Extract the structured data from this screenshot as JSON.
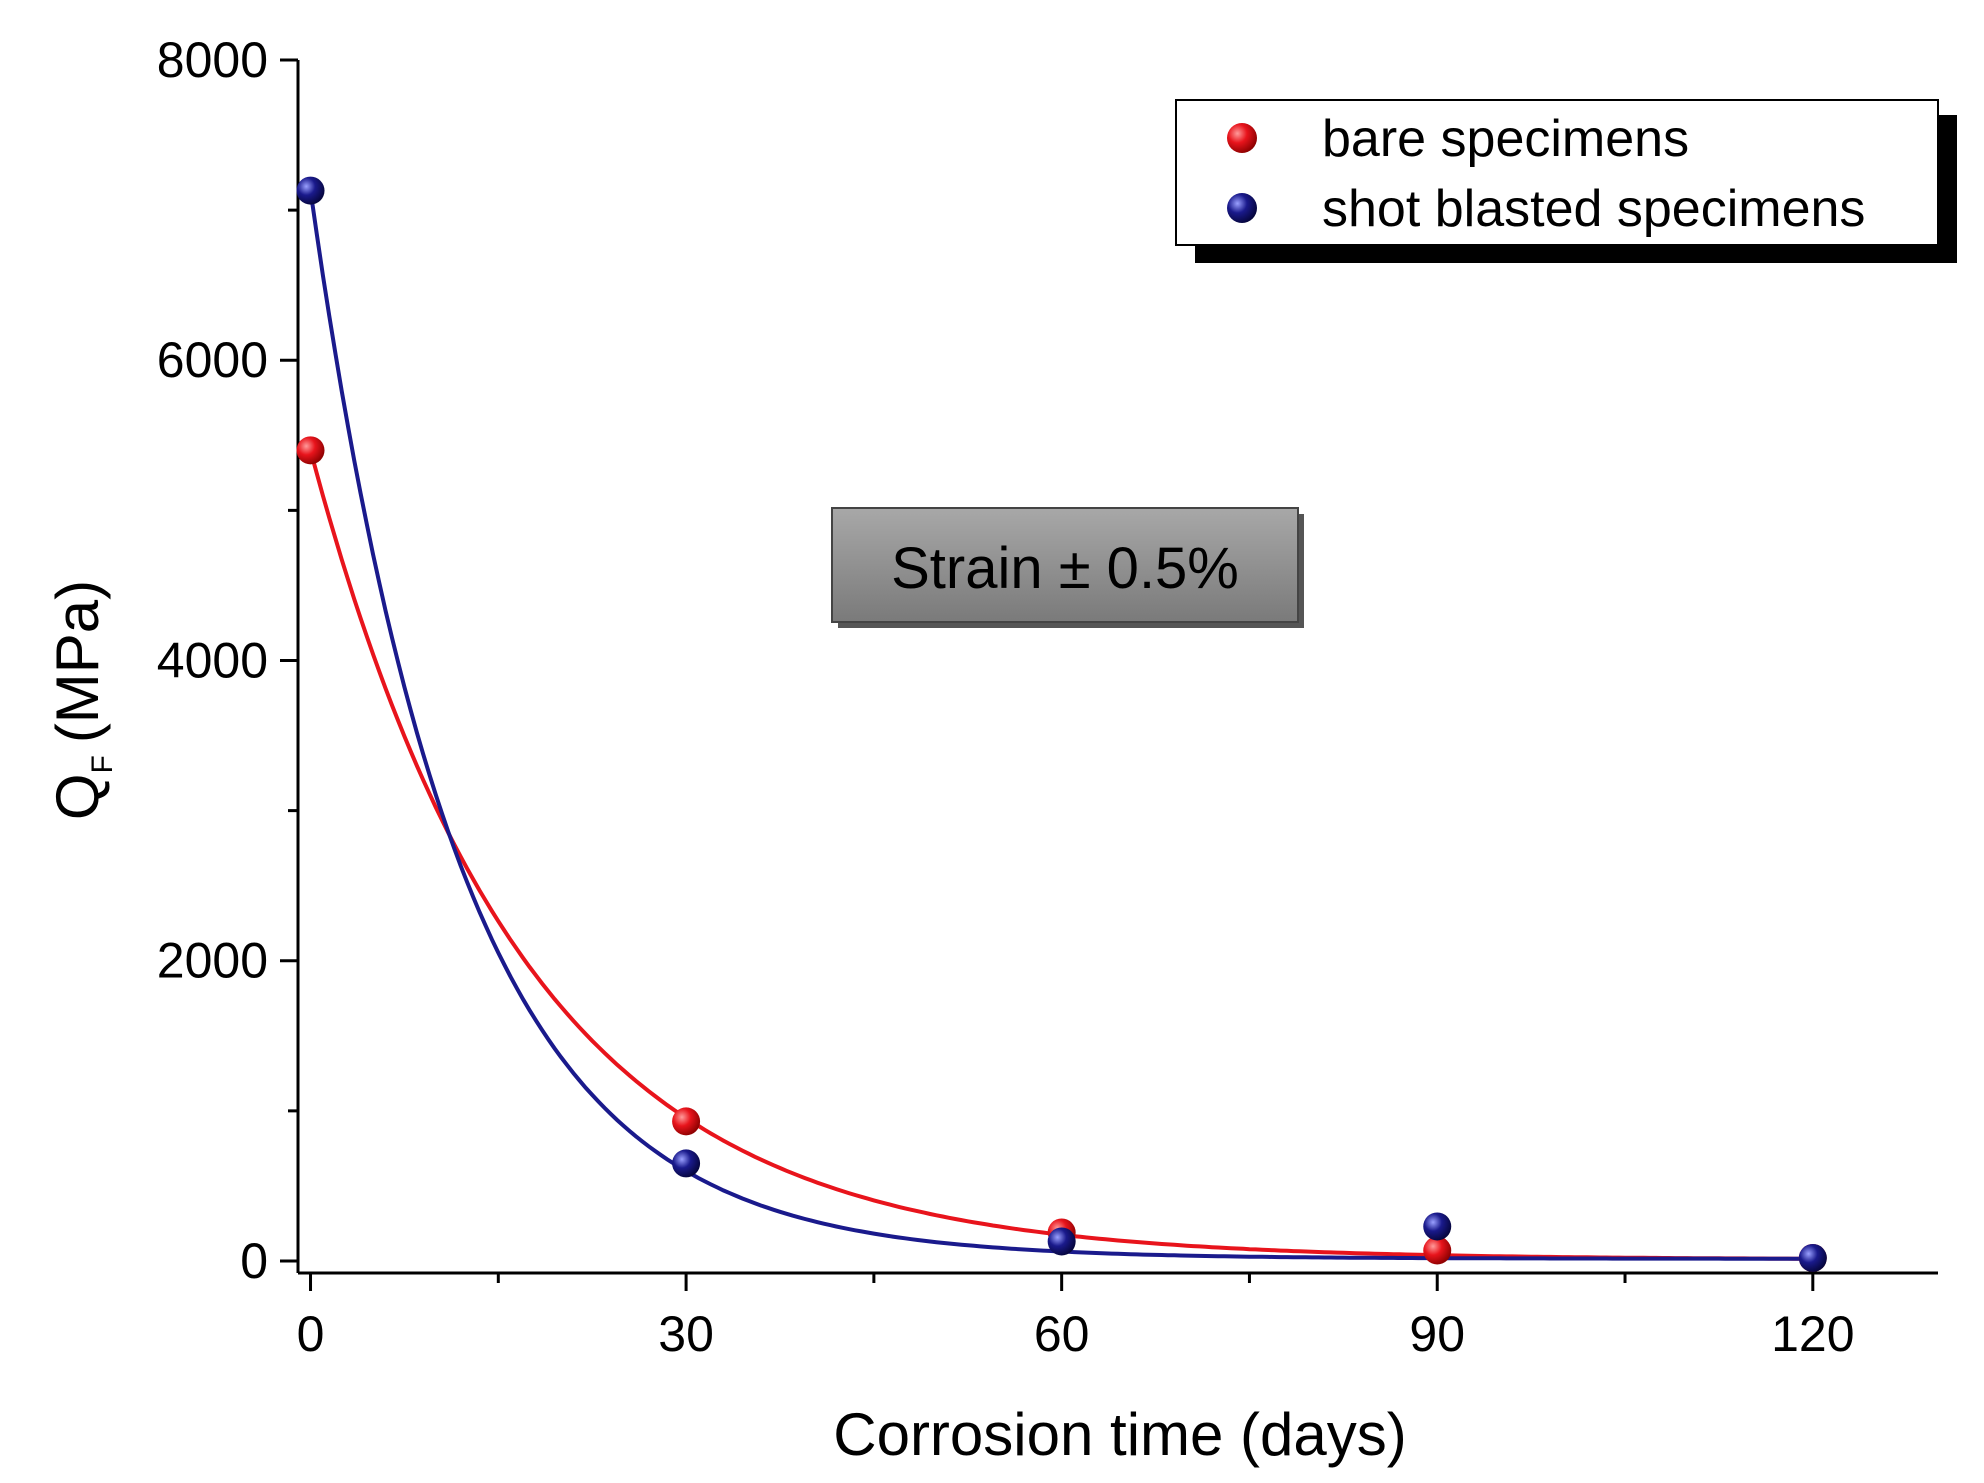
{
  "chart_data": {
    "type": "scatter",
    "title": "",
    "xlabel": "Corrosion time (days)",
    "ylabel": {
      "main": "Q",
      "subscript": "F",
      "unit": "(MPa)"
    },
    "xlim": [
      -1,
      130
    ],
    "ylim": [
      -80,
      8000
    ],
    "xticks": [
      0,
      30,
      60,
      90,
      120
    ],
    "xtick_labels": [
      "0",
      "30",
      "60",
      "90",
      "120"
    ],
    "yticks": [
      0,
      2000,
      4000,
      6000,
      8000
    ],
    "ytick_labels": [
      "0",
      "2000",
      "4000",
      "6000",
      "8000"
    ],
    "grid": false,
    "legend_position": "top-right",
    "annotation": "Strain ± 0.5%",
    "series": [
      {
        "name": "bare specimens",
        "color": "#e8141c",
        "x": [
          0,
          30,
          60,
          90,
          120
        ],
        "values": [
          5400,
          930,
          190,
          70,
          20
        ],
        "fit": {
          "type": "exponential_decay",
          "y0": 10,
          "A": 5390,
          "tau": 17.2
        }
      },
      {
        "name": "shot blasted specimens",
        "color": "#1a1a8c",
        "x": [
          0,
          30,
          60,
          90,
          120
        ],
        "values": [
          7130,
          650,
          130,
          230,
          20
        ],
        "fit": {
          "type": "exponential_decay",
          "y0": 15,
          "A": 7115,
          "tau": 12.0
        }
      }
    ]
  }
}
